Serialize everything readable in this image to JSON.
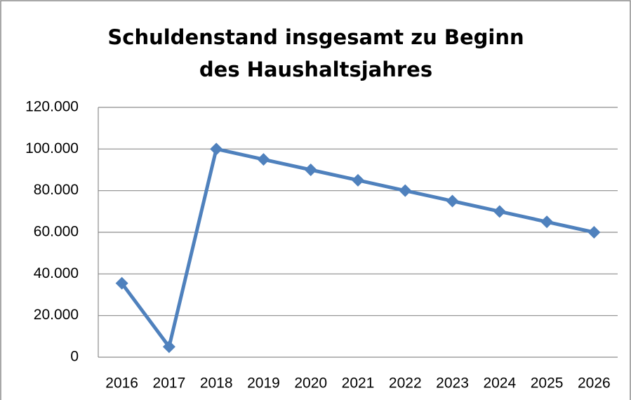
{
  "chart_data": {
    "type": "line",
    "title": "Schuldenstand insgesamt zu Beginn des Haushaltsjahres",
    "categories": [
      "2016",
      "2017",
      "2018",
      "2019",
      "2020",
      "2021",
      "2022",
      "2023",
      "2024",
      "2025",
      "2026"
    ],
    "series": [
      {
        "name": "Schuldenstand",
        "color": "#4f81bd",
        "values": [
          35500,
          5000,
          100000,
          95000,
          90000,
          85000,
          80000,
          75000,
          70000,
          65000,
          60000
        ]
      }
    ],
    "ylim": [
      0,
      120000
    ],
    "yticks": [
      0,
      {
        "value": 20000,
        "label": "20.000"
      },
      {
        "value": 40000,
        "label": "40.000"
      },
      {
        "value": 60000,
        "label": "60.000"
      },
      {
        "value": 80000,
        "label": "80.000"
      },
      {
        "value": 100000,
        "label": "100.000"
      },
      {
        "value": 120000,
        "label": "120.000"
      }
    ],
    "grid": true,
    "legend": false
  }
}
